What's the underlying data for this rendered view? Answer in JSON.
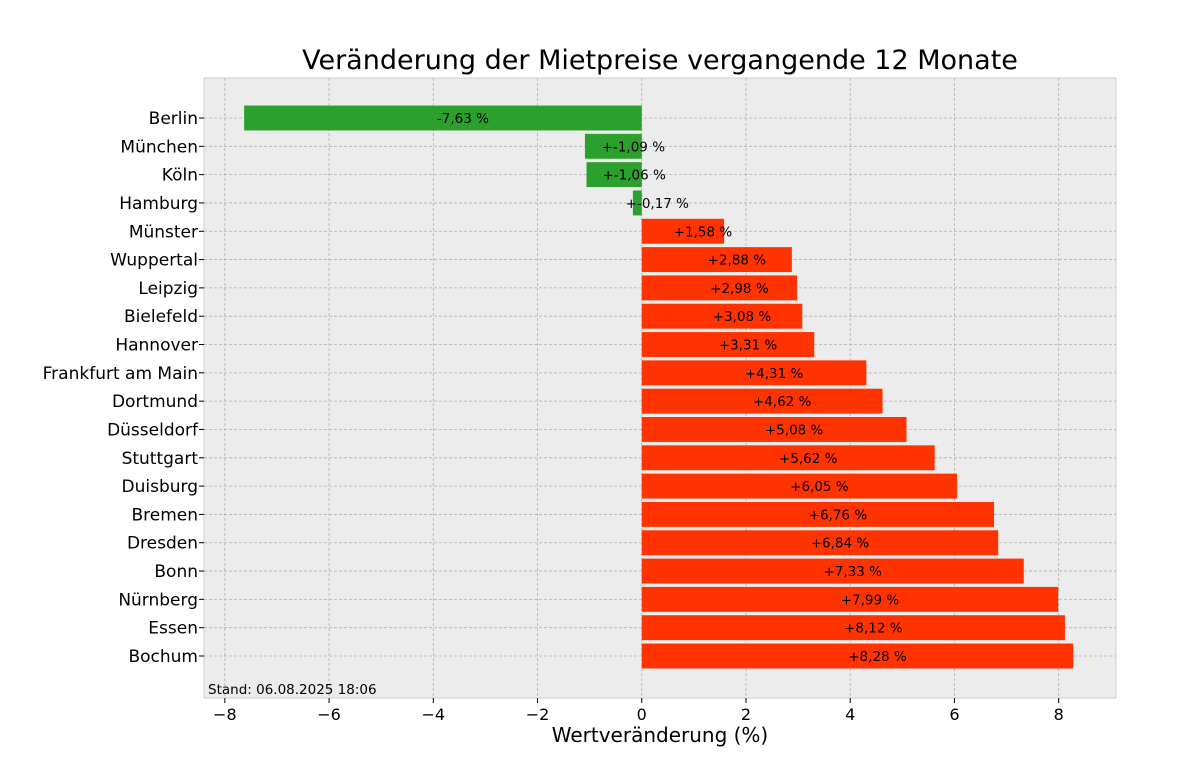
{
  "chart_data": {
    "type": "bar",
    "orientation": "horizontal",
    "title": "Veränderung der Mietpreise vergangende 12 Monate",
    "xlabel": "Wertveränderung (%)",
    "ylabel": "",
    "xlim": [
      -8.4,
      9.1
    ],
    "xticks": [
      -8,
      -6,
      -4,
      -2,
      0,
      2,
      4,
      6,
      8
    ],
    "xtick_labels": [
      "−8",
      "−6",
      "−4",
      "−2",
      "0",
      "2",
      "4",
      "6",
      "8"
    ],
    "grid": true,
    "legend": "none",
    "categories": [
      "Berlin",
      "München",
      "Köln",
      "Hamburg",
      "Münster",
      "Wuppertal",
      "Leipzig",
      "Bielefeld",
      "Hannover",
      "Frankfurt am Main",
      "Dortmund",
      "Düsseldorf",
      "Stuttgart",
      "Duisburg",
      "Bremen",
      "Dresden",
      "Bonn",
      "Nürnberg",
      "Essen",
      "Bochum"
    ],
    "values": [
      -7.63,
      -1.09,
      -1.06,
      -0.17,
      1.58,
      2.88,
      2.98,
      3.08,
      3.31,
      4.31,
      4.62,
      5.08,
      5.62,
      6.05,
      6.76,
      6.84,
      7.33,
      7.99,
      8.12,
      8.28
    ],
    "data_labels": [
      "-7,63 %",
      "+-1,09 %",
      "+-1,06 %",
      "+-0,17 %",
      "+1,58 %",
      "+2,88 %",
      "+2,98 %",
      "+3,08 %",
      "+3,31 %",
      "+4,31 %",
      "+4,62 %",
      "+5,08 %",
      "+5,62 %",
      "+6,05 %",
      "+6,76 %",
      "+6,84 %",
      "+7,33 %",
      "+7,99 %",
      "+8,12 %",
      "+8,28 %"
    ],
    "colors": {
      "negative": "#2ca02c",
      "positive": "#ff3300",
      "plot_background": "#ececec",
      "grid": "#b0b0b0"
    },
    "footnote": "Stand: 06.08.2025 18:06"
  }
}
